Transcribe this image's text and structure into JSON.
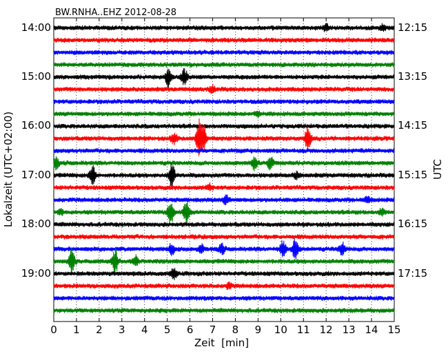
{
  "chart_data": {
    "type": "line",
    "title": "BW.RNHA..EHZ 2012-08-28",
    "xlabel": "Zeit  [min]",
    "ylabel_left": "Lokalzeit (UTC+02:00)",
    "ylabel_right": "UTC",
    "xlim": [
      0,
      15
    ],
    "x_ticks": [
      "0",
      "1",
      "2",
      "3",
      "4",
      "5",
      "6",
      "7",
      "8",
      "9",
      "10",
      "11",
      "12",
      "13",
      "14",
      "15"
    ],
    "left_ticks": [
      "14:00",
      "15:00",
      "16:00",
      "17:00",
      "18:00",
      "19:00"
    ],
    "right_ticks": [
      "12:15",
      "13:15",
      "14:15",
      "15:15",
      "16:15",
      "17:15"
    ],
    "grid": "vertical dotted at each minute",
    "trace_colors": [
      "#000000",
      "#ff0000",
      "#0000ff",
      "#008000"
    ],
    "rows": 24,
    "row_minutes": 15,
    "events": [
      {
        "row": 0,
        "minute": 12.0,
        "amp": 0.5
      },
      {
        "row": 0,
        "minute": 14.5,
        "amp": 0.5
      },
      {
        "row": 4,
        "minute": 5.05,
        "amp": 1.6
      },
      {
        "row": 4,
        "minute": 5.75,
        "amp": 1.2
      },
      {
        "row": 5,
        "minute": 7.0,
        "amp": 0.5
      },
      {
        "row": 7,
        "minute": 9.0,
        "amp": 0.4
      },
      {
        "row": 9,
        "minute": 5.3,
        "amp": 0.9
      },
      {
        "row": 9,
        "minute": 6.4,
        "amp": 3.0
      },
      {
        "row": 9,
        "minute": 6.6,
        "amp": 2.2
      },
      {
        "row": 9,
        "minute": 11.2,
        "amp": 2.0
      },
      {
        "row": 11,
        "minute": 0.1,
        "amp": 0.9
      },
      {
        "row": 11,
        "minute": 8.85,
        "amp": 1.1
      },
      {
        "row": 11,
        "minute": 9.55,
        "amp": 1.1
      },
      {
        "row": 12,
        "minute": 1.7,
        "amp": 1.6
      },
      {
        "row": 12,
        "minute": 5.2,
        "amp": 2.0
      },
      {
        "row": 12,
        "minute": 10.7,
        "amp": 0.5
      },
      {
        "row": 13,
        "minute": 6.85,
        "amp": 0.5
      },
      {
        "row": 14,
        "minute": 7.6,
        "amp": 0.7
      },
      {
        "row": 14,
        "minute": 13.8,
        "amp": 0.5
      },
      {
        "row": 15,
        "minute": 0.3,
        "amp": 0.4
      },
      {
        "row": 15,
        "minute": 5.15,
        "amp": 2.0
      },
      {
        "row": 15,
        "minute": 5.85,
        "amp": 2.0
      },
      {
        "row": 15,
        "minute": 14.45,
        "amp": 0.5
      },
      {
        "row": 18,
        "minute": 5.2,
        "amp": 0.9
      },
      {
        "row": 18,
        "minute": 6.5,
        "amp": 0.8
      },
      {
        "row": 18,
        "minute": 7.4,
        "amp": 0.8
      },
      {
        "row": 18,
        "minute": 10.1,
        "amp": 1.3
      },
      {
        "row": 18,
        "minute": 10.65,
        "amp": 2.0
      },
      {
        "row": 18,
        "minute": 12.7,
        "amp": 1.1
      },
      {
        "row": 19,
        "minute": 0.8,
        "amp": 2.2
      },
      {
        "row": 19,
        "minute": 2.7,
        "amp": 2.0
      },
      {
        "row": 19,
        "minute": 3.6,
        "amp": 0.8
      },
      {
        "row": 20,
        "minute": 5.3,
        "amp": 0.8
      },
      {
        "row": 21,
        "minute": 7.7,
        "amp": 0.4
      }
    ]
  }
}
